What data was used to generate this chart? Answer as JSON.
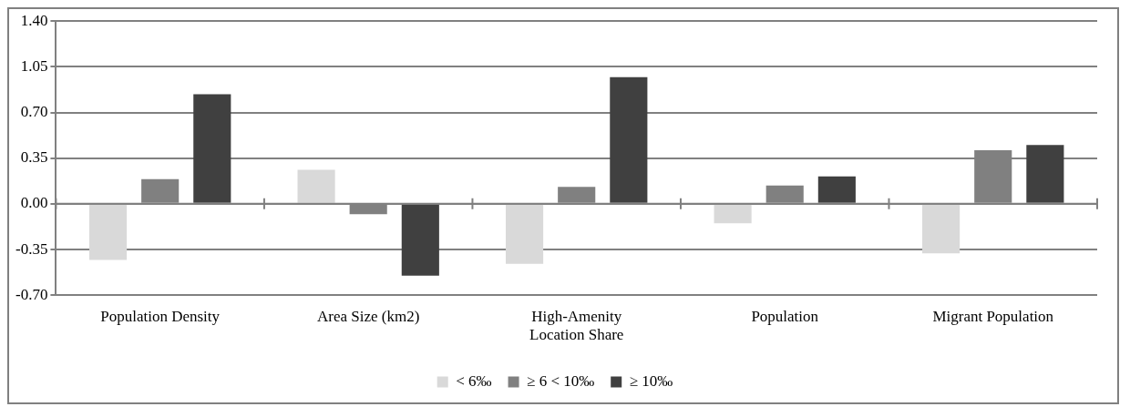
{
  "chart_data": {
    "type": "bar",
    "categories": [
      "Population Density",
      "Area Size (km2)",
      "High-Amenity Location Share",
      "Population",
      "Migrant Population"
    ],
    "series": [
      {
        "name": "< 6‰",
        "color": "#d9d9d9",
        "values": [
          -0.43,
          0.26,
          -0.46,
          -0.15,
          -0.38
        ]
      },
      {
        "name": "≥ 6 < 10‰",
        "color": "#808080",
        "values": [
          0.19,
          -0.08,
          0.13,
          0.14,
          0.41
        ]
      },
      {
        "name": "≥ 10‰",
        "color": "#404040",
        "values": [
          0.84,
          -0.55,
          0.97,
          0.21,
          0.45
        ]
      }
    ],
    "ylim": [
      -0.7,
      1.4
    ],
    "yticks": [
      {
        "value": -0.7,
        "label": "-0.70"
      },
      {
        "value": -0.35,
        "label": "-0.35"
      },
      {
        "value": 0,
        "label": "0.00"
      },
      {
        "value": 0.35,
        "label": "0.35"
      },
      {
        "value": 0.7,
        "label": "0.70"
      },
      {
        "value": 1.05,
        "label": "1.05"
      },
      {
        "value": 1.4,
        "label": "1.40"
      }
    ],
    "grid": "y",
    "legend": "bottom"
  }
}
